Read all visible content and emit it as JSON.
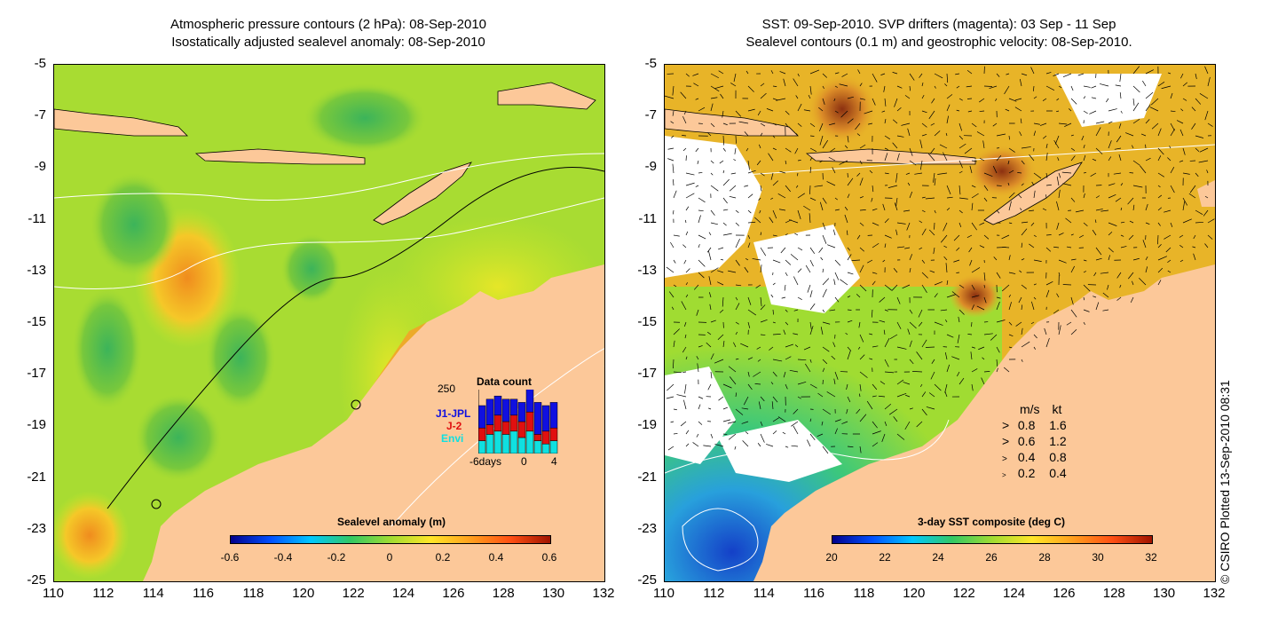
{
  "left_panel": {
    "title_line1": "Atmospheric pressure contours (2 hPa): 08-Sep-2010",
    "title_line2": "Isostatically adjusted sealevel anomaly: 08-Sep-2010",
    "colorbar_title": "Sealevel anomaly (m)",
    "colorbar_ticks": [
      "-0.6",
      "-0.4",
      "-0.2",
      "0",
      "0.2",
      "0.4",
      "0.6"
    ],
    "inset": {
      "title": "Data count",
      "ymax": "250",
      "series": [
        "J1-JPL",
        "J-2",
        "Envi"
      ],
      "series_colors": [
        "#1010e0",
        "#e01010",
        "#10e0e0"
      ],
      "xticks": [
        "-6days",
        "0",
        "4"
      ],
      "bars": [
        {
          "envi": 0.2,
          "j2": 0.2,
          "j1": 0.35
        },
        {
          "envi": 0.3,
          "j2": 0.15,
          "j1": 0.4
        },
        {
          "envi": 0.35,
          "j2": 0.25,
          "j1": 0.3
        },
        {
          "envi": 0.3,
          "j2": 0.2,
          "j1": 0.35
        },
        {
          "envi": 0.35,
          "j2": 0.25,
          "j1": 0.25
        },
        {
          "envi": 0.25,
          "j2": 0.25,
          "j1": 0.3
        },
        {
          "envi": 0.35,
          "j2": 0.3,
          "j1": 0.45
        },
        {
          "envi": 0.2,
          "j2": 0.1,
          "j1": 0.5
        },
        {
          "envi": 0.15,
          "j2": 0.2,
          "j1": 0.4
        },
        {
          "envi": 0.2,
          "j2": 0.2,
          "j1": 0.4
        }
      ]
    }
  },
  "right_panel": {
    "title_line1": "SST: 09-Sep-2010. SVP drifters (magenta): 03 Sep - 11 Sep",
    "title_line2": "Sealevel contours (0.1 m) and geostrophic velocity: 08-Sep-2010.",
    "colorbar_title": "3-day SST composite (deg C)",
    "colorbar_ticks": [
      "20",
      "22",
      "24",
      "26",
      "28",
      "30",
      "32"
    ],
    "velocity_legend": {
      "header_ms": "m/s",
      "header_kt": "kt",
      "rows": [
        {
          "ms": "0.8",
          "kt": "1.6"
        },
        {
          "ms": "0.6",
          "kt": "1.2"
        },
        {
          "ms": "0.4",
          "kt": "0.8"
        },
        {
          "ms": "0.2",
          "kt": "0.4"
        }
      ]
    }
  },
  "axes": {
    "y_ticks": [
      "-5",
      "-7",
      "-9",
      "-11",
      "-13",
      "-15",
      "-17",
      "-19",
      "-21",
      "-23",
      "-25"
    ],
    "x_ticks": [
      "110",
      "112",
      "114",
      "116",
      "118",
      "120",
      "122",
      "124",
      "126",
      "128",
      "130",
      "132"
    ]
  },
  "copyright": "© CSIRO Plotted 13-Sep-2010 08:31",
  "colors": {
    "land": "#fcc899",
    "ocean_base_left": "#a8dc32",
    "ocean_base_right": "#e8b428"
  }
}
